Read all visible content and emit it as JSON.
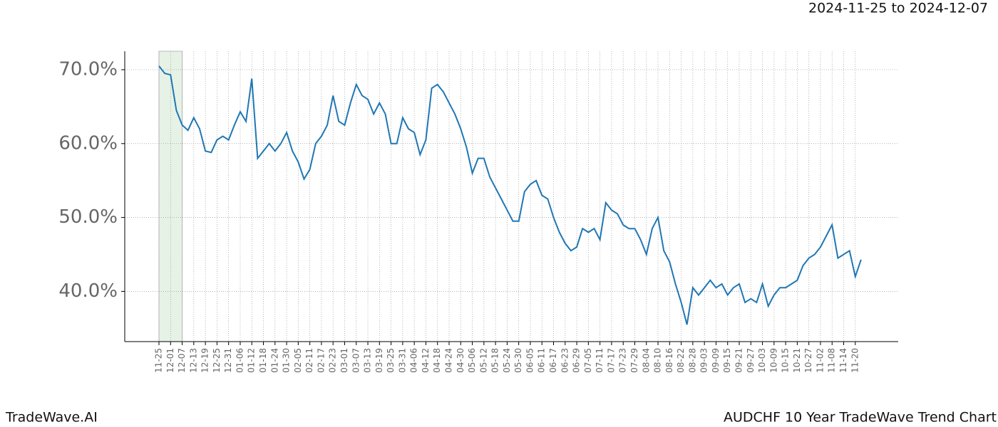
{
  "chart_data": {
    "type": "line",
    "title": "AUDCHF 10 Year TradeWave Trend Chart",
    "subtitle": "2024-11-25 to 2024-12-07",
    "brand": "TradeWave.AI",
    "categories": [
      "11-25",
      null,
      "12-01",
      null,
      "12-07",
      null,
      "12-13",
      null,
      "12-19",
      null,
      "12-25",
      null,
      "12-31",
      null,
      "01-06",
      null,
      "01-12",
      null,
      "01-18",
      null,
      "01-24",
      null,
      "01-30",
      null,
      "02-05",
      null,
      "02-11",
      null,
      "02-17",
      null,
      "02-23",
      null,
      "03-01",
      null,
      "03-07",
      null,
      "03-13",
      null,
      "03-19",
      null,
      "03-25",
      null,
      "03-31",
      null,
      "04-06",
      null,
      "04-12",
      null,
      "04-18",
      null,
      "04-24",
      null,
      "04-30",
      null,
      "05-06",
      null,
      "05-12",
      null,
      "05-18",
      null,
      "05-24",
      null,
      "05-30",
      null,
      "06-05",
      null,
      "06-11",
      null,
      "06-17",
      null,
      "06-23",
      null,
      "06-29",
      null,
      "07-05",
      null,
      "07-11",
      null,
      "07-17",
      null,
      "07-23",
      null,
      "07-29",
      null,
      "08-04",
      null,
      "08-10",
      null,
      "08-16",
      null,
      "08-22",
      null,
      "08-28",
      null,
      "09-03",
      null,
      "09-09",
      null,
      "09-15",
      null,
      "09-21",
      null,
      "09-27",
      null,
      "10-03",
      null,
      "10-09",
      null,
      "10-15",
      null,
      "10-21",
      null,
      "10-27",
      null,
      "11-02",
      null,
      "11-08",
      null,
      "11-14",
      null,
      "11-20",
      null
    ],
    "series": [
      {
        "color": "#1f77b4",
        "values": [
          70.5,
          69.5,
          69.3,
          64.5,
          62.5,
          61.8,
          63.5,
          62,
          59,
          58.8,
          60.5,
          61,
          60.5,
          62.5,
          64.3,
          63,
          68.8,
          58,
          59,
          60,
          59,
          60,
          61.5,
          59,
          57.5,
          55.2,
          56.5,
          60,
          61,
          62.5,
          66.5,
          63,
          62.5,
          65.5,
          68,
          66.5,
          66,
          64,
          65.5,
          64,
          60,
          60,
          63.5,
          62,
          61.5,
          58.5,
          60.5,
          67.5,
          68,
          67,
          65.5,
          64,
          62,
          59.5,
          56,
          58,
          58,
          55.5,
          54,
          52.5,
          51,
          49.5,
          49.5,
          53.5,
          54.5,
          55,
          53,
          52.5,
          50,
          48,
          46.5,
          45.5,
          46,
          48.5,
          48,
          48.5,
          47,
          52,
          51,
          50.5,
          49,
          48.5,
          48.5,
          47,
          45,
          48.5,
          50,
          45.5,
          44,
          41,
          38.5,
          35.5,
          40.5,
          39.5,
          40.5,
          41.5,
          40.5,
          41,
          39.5,
          40.5,
          41,
          38.5,
          39,
          38.5,
          41,
          38,
          39.5,
          40.5,
          40.5,
          41,
          41.5,
          43.5,
          44.5,
          45,
          46,
          47.5,
          49,
          44.5,
          45,
          45.5,
          42,
          44.3
        ]
      }
    ],
    "highlight_color": "#e6f2e6",
    "ylim": [
      33.2,
      72.5
    ],
    "yticks": [
      {
        "value": 40,
        "label": "40.0%"
      },
      {
        "value": 50,
        "label": "50.0%"
      },
      {
        "value": 60,
        "label": "60.0%"
      },
      {
        "value": 70,
        "label": "70.0%"
      }
    ],
    "grid": true
  }
}
